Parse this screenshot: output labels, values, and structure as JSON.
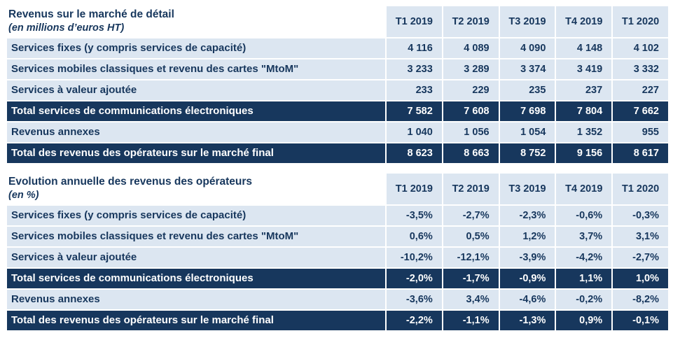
{
  "colors": {
    "header_bg": "#DCE6F1",
    "row_bg": "#DCE6F1",
    "total_row_bg": "#17375D",
    "text": "#17375D",
    "total_text": "#FFFFFF",
    "separator": "#FFFFFF"
  },
  "chart_data": [
    {
      "type": "table",
      "title": "Revenus sur le marché de détail",
      "subtitle": "(en millions d’euros HT)",
      "columns": [
        "T1 2019",
        "T2 2019",
        "T3 2019",
        "T4 2019",
        "T1 2020"
      ],
      "rows": [
        {
          "label": "Services fixes (y compris services de capacité)",
          "values": [
            "4 116",
            "4 089",
            "4 090",
            "4 148",
            "4 102"
          ],
          "is_total": false
        },
        {
          "label": "Services mobiles classiques et revenu des cartes \"MtoM\"",
          "values": [
            "3 233",
            "3 289",
            "3 374",
            "3 419",
            "3 332"
          ],
          "is_total": false
        },
        {
          "label": "Services à valeur ajoutée",
          "values": [
            "233",
            "229",
            "235",
            "237",
            "227"
          ],
          "is_total": false
        },
        {
          "label": "Total services de communications électroniques",
          "values": [
            "7 582",
            "7 608",
            "7 698",
            "7 804",
            "7 662"
          ],
          "is_total": true
        },
        {
          "label": "Revenus annexes",
          "values": [
            "1 040",
            "1 056",
            "1 054",
            "1 352",
            "955"
          ],
          "is_total": false
        },
        {
          "label": "Total des revenus des opérateurs sur le marché final",
          "values": [
            "8 623",
            "8 663",
            "8 752",
            "9 156",
            "8 617"
          ],
          "is_total": true
        }
      ]
    },
    {
      "type": "table",
      "title": "Evolution annuelle des revenus des opérateurs",
      "subtitle": "(en %)",
      "columns": [
        "T1 2019",
        "T2 2019",
        "T3 2019",
        "T4 2019",
        "T1 2020"
      ],
      "rows": [
        {
          "label": "Services fixes (y compris services de capacité)",
          "values": [
            "-3,5%",
            "-2,7%",
            "-2,3%",
            "-0,6%",
            "-0,3%"
          ],
          "is_total": false
        },
        {
          "label": "Services mobiles classiques et revenu des cartes \"MtoM\"",
          "values": [
            "0,6%",
            "0,5%",
            "1,2%",
            "3,7%",
            "3,1%"
          ],
          "is_total": false
        },
        {
          "label": "Services à valeur ajoutée",
          "values": [
            "-10,2%",
            "-12,1%",
            "-3,9%",
            "-4,2%",
            "-2,7%"
          ],
          "is_total": false
        },
        {
          "label": "Total services de communications électroniques",
          "values": [
            "-2,0%",
            "-1,7%",
            "-0,9%",
            "1,1%",
            "1,0%"
          ],
          "is_total": true
        },
        {
          "label": "Revenus annexes",
          "values": [
            "-3,6%",
            "3,4%",
            "-4,6%",
            "-0,2%",
            "-8,2%"
          ],
          "is_total": false
        },
        {
          "label": "Total des revenus des opérateurs sur le marché final",
          "values": [
            "-2,2%",
            "-1,1%",
            "-1,3%",
            "0,9%",
            "-0,1%"
          ],
          "is_total": true
        }
      ]
    }
  ]
}
